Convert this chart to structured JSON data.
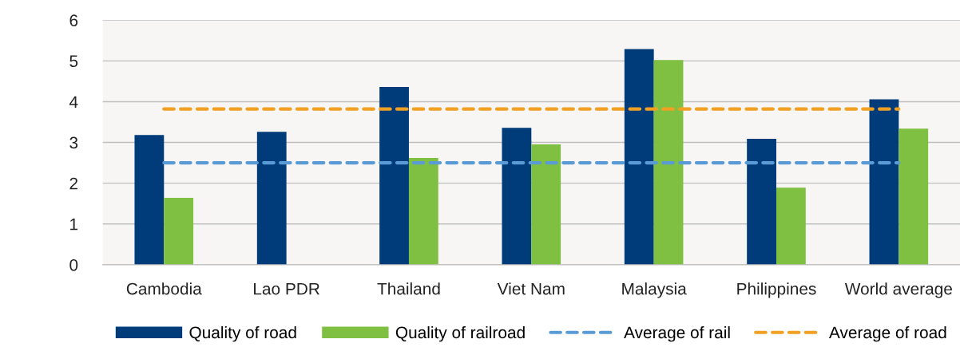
{
  "chart_data": {
    "type": "bar",
    "categories": [
      "Cambodia",
      "Lao PDR",
      "Thailand",
      "Viet Nam",
      "Malaysia",
      "Philippines",
      "World average"
    ],
    "series": [
      {
        "name": "Quality of road",
        "color": "#003b7a",
        "values": [
          3.18,
          3.26,
          4.36,
          3.36,
          5.29,
          3.09,
          4.06
        ]
      },
      {
        "name": "Quality of railroad",
        "color": "#7fc042",
        "values": [
          1.64,
          null,
          2.62,
          2.95,
          5.02,
          1.89,
          3.34
        ]
      },
      {
        "name": "Average of rail",
        "type": "line",
        "color": "#5b9bd5",
        "line_style": "dashed",
        "marker": "none",
        "values": [
          2.5,
          2.5,
          2.5,
          2.5,
          2.5,
          2.5,
          2.5
        ]
      },
      {
        "name": "Average of road",
        "type": "line",
        "color": "#f0a023",
        "line_style": "dashed",
        "marker": "none",
        "values": [
          3.82,
          3.82,
          3.82,
          3.82,
          3.82,
          3.82,
          3.82
        ]
      }
    ],
    "ylim": [
      0,
      6
    ],
    "yticks": [
      0,
      1,
      2,
      3,
      4,
      5,
      6
    ],
    "grid": "y",
    "legend": "bottom"
  }
}
